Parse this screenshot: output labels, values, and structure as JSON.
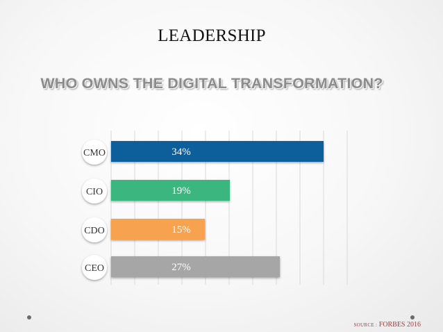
{
  "slide": {
    "title": "LEADERSHIP",
    "subtitle": "WHO OWNS THE DIGITAL TRANSFORMATION?",
    "source_prefix": "SOURCE :",
    "source_name": "FORBES 2016"
  },
  "colors": {
    "CMO": "#0f5e9c",
    "CIO": "#3bb67f",
    "CDO": "#f7a24f",
    "CEO": "#a6a6a6"
  },
  "chart_data": {
    "type": "bar",
    "orientation": "horizontal",
    "categories": [
      "CMO",
      "CIO",
      "CDO",
      "CEO"
    ],
    "values": [
      34,
      19,
      15,
      27
    ],
    "value_labels": [
      "34%",
      "19%",
      "15%",
      "27%"
    ],
    "grid": true
  }
}
